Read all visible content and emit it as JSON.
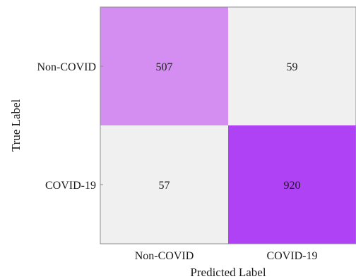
{
  "chart_data": {
    "type": "heatmap",
    "title": "",
    "xlabel": "Predicted Label",
    "ylabel": "True Label",
    "x_categories": [
      "Non-COVID",
      "COVID-19"
    ],
    "y_categories": [
      "Non-COVID",
      "COVID-19"
    ],
    "values": [
      [
        507,
        59
      ],
      [
        57,
        920
      ]
    ],
    "cell_colors": [
      [
        "#d48ef2",
        "#f0f0f0"
      ],
      [
        "#f0f0f0",
        "#b042f5"
      ]
    ],
    "grid": false,
    "legend": "none"
  }
}
